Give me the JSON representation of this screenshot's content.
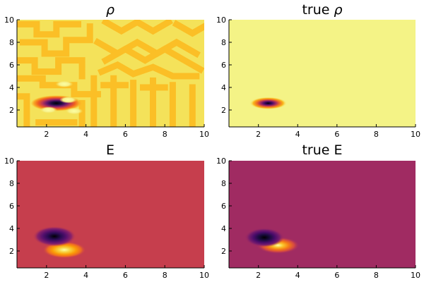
{
  "chart_data": [
    {
      "type": "heatmap",
      "title": "ρ",
      "title_prefix": "",
      "title_symbol": "ρ",
      "xlim": [
        0.5,
        10
      ],
      "ylim": [
        0.5,
        10
      ],
      "xticks": [
        2,
        4,
        6,
        8,
        10
      ],
      "yticks": [
        2,
        4,
        6,
        8,
        10
      ],
      "legend": "none",
      "grid": false,
      "colormap": "inferno",
      "background_color": "#f4e25a",
      "pattern": "striped-maze",
      "features": [
        {
          "kind": "dark-blob",
          "x": 2.5,
          "y": 2.6,
          "rx": 1.3,
          "ry": 0.7
        },
        {
          "kind": "light-spot",
          "x": 2.1,
          "y": 2.0
        },
        {
          "kind": "light-spot",
          "x": 3.1,
          "y": 2.9
        },
        {
          "kind": "light-spot",
          "x": 3.4,
          "y": 1.9
        },
        {
          "kind": "light-spot",
          "x": 2.9,
          "y": 4.3
        }
      ]
    },
    {
      "type": "heatmap",
      "title": "true ρ",
      "title_prefix": "true ",
      "title_symbol": "ρ",
      "xlim": [
        0.5,
        10
      ],
      "ylim": [
        0.5,
        10
      ],
      "xticks": [
        2,
        4,
        6,
        8,
        10
      ],
      "yticks": [
        2,
        4,
        6,
        8,
        10
      ],
      "legend": "none",
      "grid": false,
      "colormap": "inferno",
      "background_color": "#f4f386",
      "features": [
        {
          "kind": "dark-blob",
          "x": 2.5,
          "y": 2.6,
          "rx": 0.95,
          "ry": 0.55
        }
      ]
    },
    {
      "type": "heatmap",
      "title": "E",
      "xlim": [
        0.5,
        10
      ],
      "ylim": [
        0.5,
        10
      ],
      "xticks": [
        2,
        4,
        6,
        8,
        10
      ],
      "yticks": [
        2,
        4,
        6,
        8,
        10
      ],
      "legend": "none",
      "grid": false,
      "colormap": "inferno",
      "background_color": "#c63e4d",
      "features": [
        {
          "kind": "dark-blob",
          "x": 2.4,
          "y": 3.3,
          "rx": 1.1,
          "ry": 0.9
        },
        {
          "kind": "bright-blob",
          "x": 2.9,
          "y": 2.1,
          "rx": 1.1,
          "ry": 0.75
        }
      ]
    },
    {
      "type": "heatmap",
      "title": "true E",
      "xlim": [
        0.5,
        10
      ],
      "ylim": [
        0.5,
        10
      ],
      "xticks": [
        2,
        4,
        6,
        8,
        10
      ],
      "yticks": [
        2,
        4,
        6,
        8,
        10
      ],
      "legend": "none",
      "grid": false,
      "colormap": "inferno",
      "background_color": "#a02b62",
      "features": [
        {
          "kind": "dark-blob",
          "x": 2.3,
          "y": 3.2,
          "rx": 1.0,
          "ry": 0.85
        },
        {
          "kind": "bright-blob",
          "x": 3.0,
          "y": 2.5,
          "rx": 1.1,
          "ry": 0.75
        }
      ]
    }
  ]
}
